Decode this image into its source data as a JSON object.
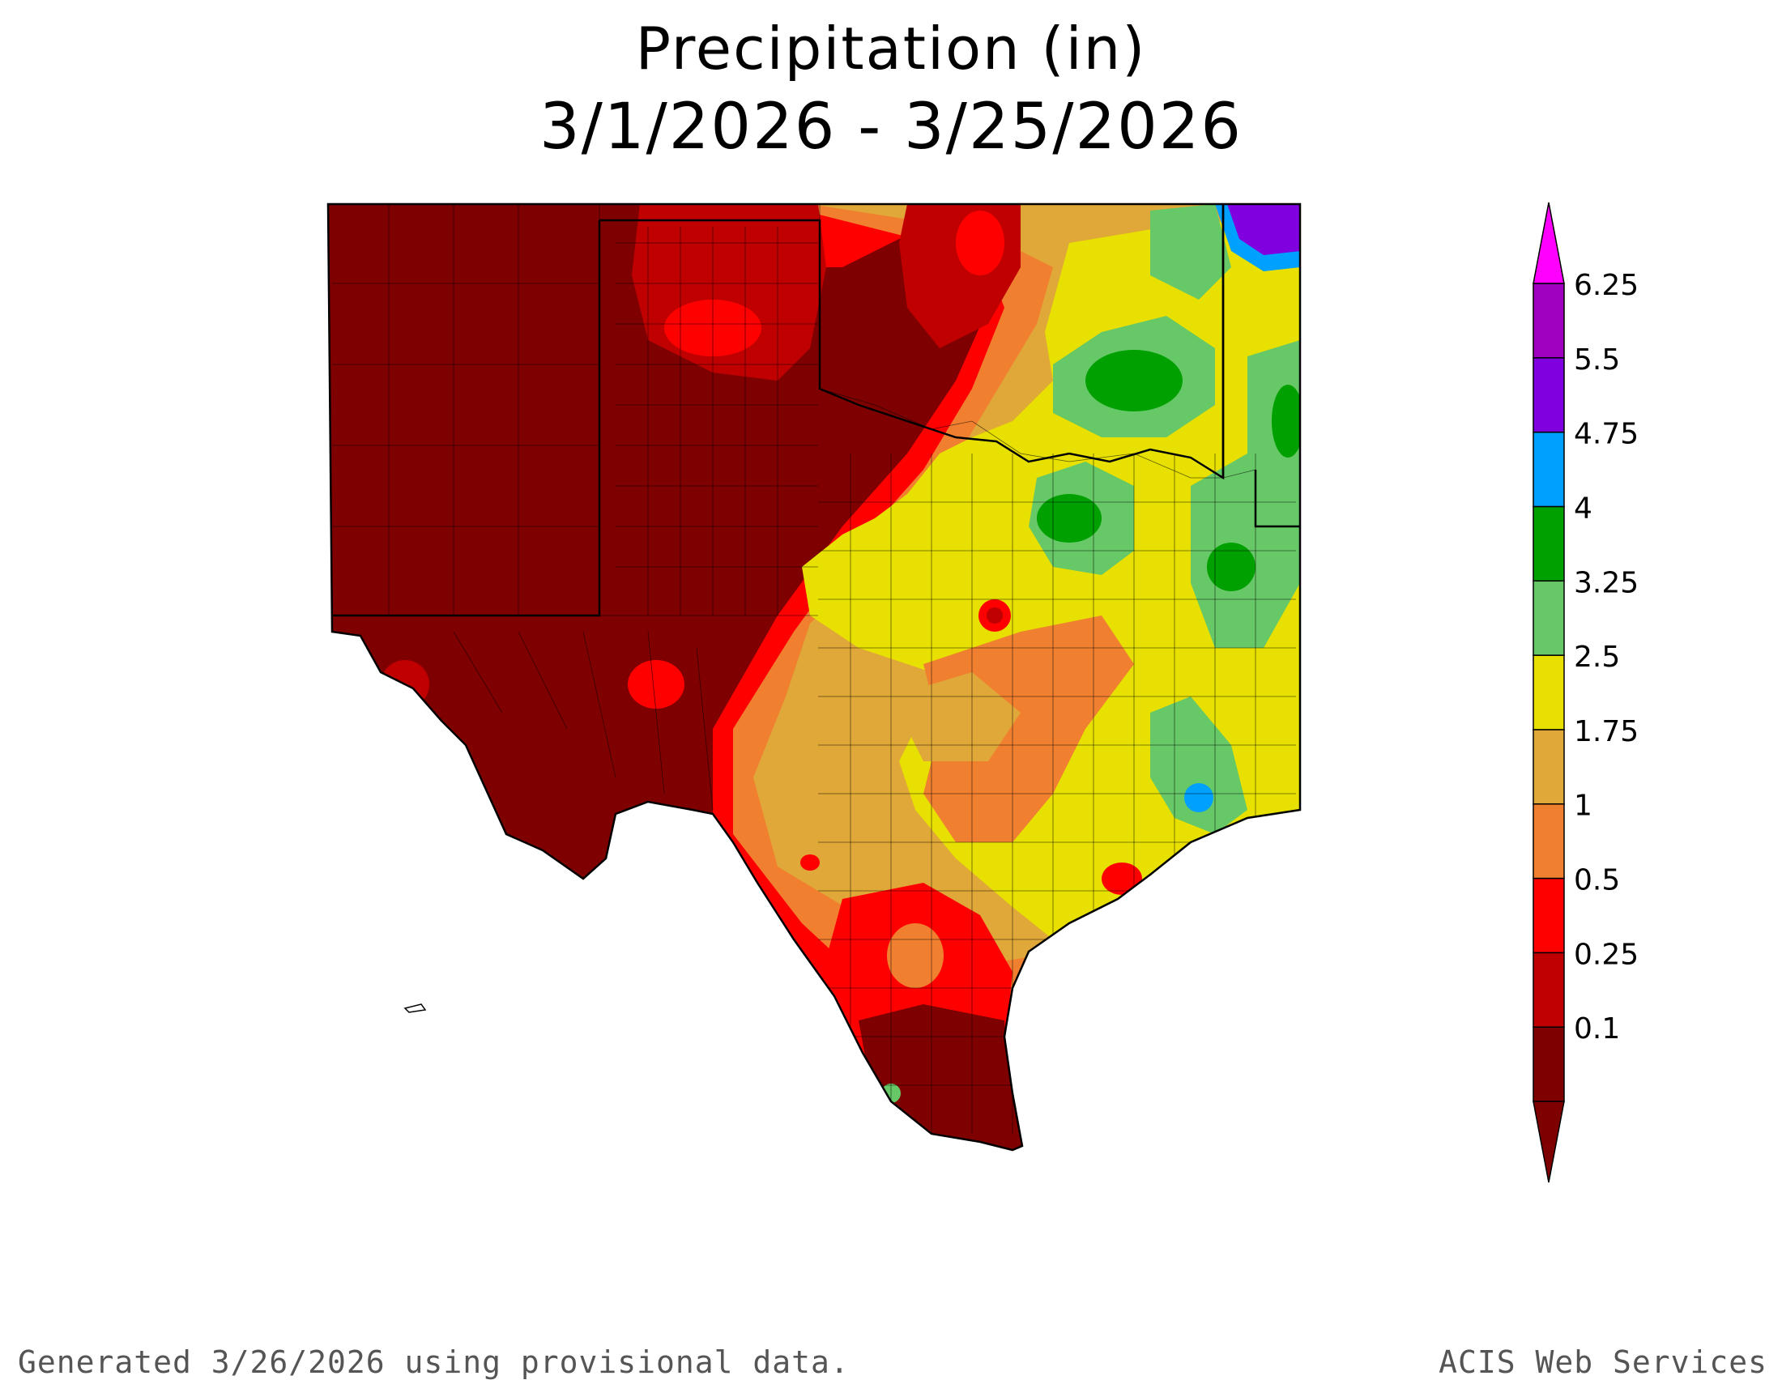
{
  "header": {
    "title": "Precipitation (in)",
    "date_range": "3/1/2026 - 3/25/2026"
  },
  "legend": {
    "bins": [
      {
        "label": "0.1",
        "color": "#7f0000"
      },
      {
        "label": "0.25",
        "color": "#c00000"
      },
      {
        "label": "0.5",
        "color": "#ff0000"
      },
      {
        "label": "1",
        "color": "#f08030"
      },
      {
        "label": "1.75",
        "color": "#e0a838"
      },
      {
        "label": "2.5",
        "color": "#e8e000"
      },
      {
        "label": "3.25",
        "color": "#66c866"
      },
      {
        "label": "4",
        "color": "#00a000"
      },
      {
        "label": "4.75",
        "color": "#00a0ff"
      },
      {
        "label": "5.5",
        "color": "#8000e0"
      },
      {
        "label": "6.25",
        "color": "#a000c0"
      }
    ],
    "over_color": "#ff00ff",
    "under_color": "#7f0000"
  },
  "footer": {
    "left": "Generated 3/26/2026  using provisional data.",
    "right": "ACIS Web Services"
  }
}
